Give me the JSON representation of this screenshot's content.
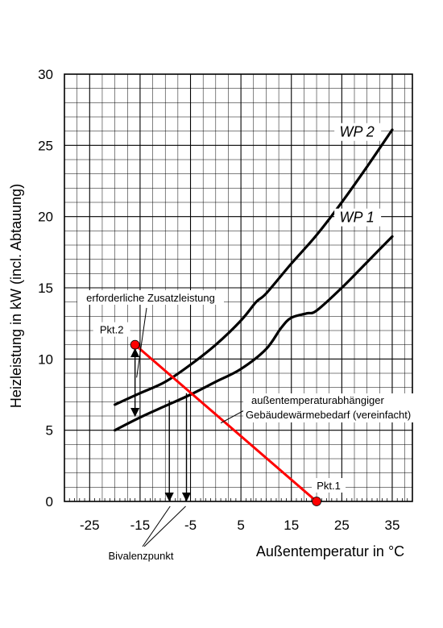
{
  "chart_data": {
    "type": "line",
    "xlabel": "Außentemperatur in °C",
    "ylabel": "Heizleistung in kW (incl. Abtauung)",
    "xlim": [
      -30,
      39
    ],
    "ylim": [
      0,
      30
    ],
    "x_ticks": [
      -25,
      -15,
      -5,
      5,
      15,
      25,
      35
    ],
    "y_ticks": [
      0,
      5,
      10,
      15,
      20,
      25,
      30
    ],
    "grid": true,
    "series": [
      {
        "name": "WP 2",
        "color": "#000000",
        "points": [
          [
            -20,
            6.8
          ],
          [
            -15,
            7.6
          ],
          [
            -10,
            8.4
          ],
          [
            -5,
            9.6
          ],
          [
            0,
            11.0
          ],
          [
            5,
            12.7
          ],
          [
            8,
            14.0
          ],
          [
            10,
            14.6
          ],
          [
            15,
            16.7
          ],
          [
            20,
            18.7
          ],
          [
            25,
            21.0
          ],
          [
            30,
            23.5
          ],
          [
            35,
            26.1
          ]
        ]
      },
      {
        "name": "WP 1",
        "color": "#000000",
        "points": [
          [
            -20,
            5.0
          ],
          [
            -15,
            5.9
          ],
          [
            -10,
            6.7
          ],
          [
            -5,
            7.5
          ],
          [
            0,
            8.4
          ],
          [
            5,
            9.3
          ],
          [
            10,
            10.7
          ],
          [
            13,
            12.2
          ],
          [
            15,
            12.9
          ],
          [
            18,
            13.2
          ],
          [
            20,
            13.4
          ],
          [
            25,
            15.0
          ],
          [
            30,
            16.8
          ],
          [
            35,
            18.6
          ]
        ]
      }
    ],
    "demand_line": {
      "color": "#ff0000",
      "from": {
        "label": "Pkt.2",
        "x": -16,
        "y": 11.0
      },
      "to": {
        "label": "Pkt.1",
        "x": 20,
        "y": 0
      }
    },
    "annotations": {
      "zusatzleistung": "erforderliche Zusatzleistung",
      "demand": [
        "außentemperaturabhängiger",
        "Gebäudewärmebedarf (vereinfacht)"
      ],
      "bivalent": "Bivalenzpunkt"
    }
  }
}
